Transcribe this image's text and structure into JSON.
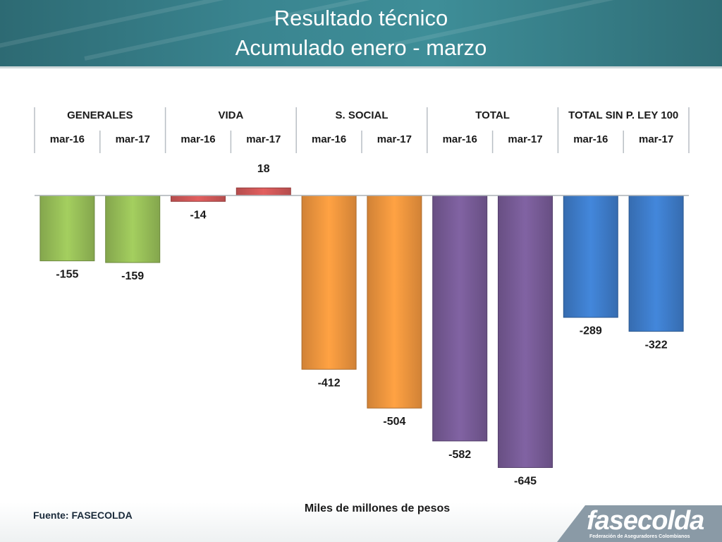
{
  "header": {
    "title_line1": "Resultado técnico",
    "title_line2": "Acumulado  enero - marzo"
  },
  "footer": {
    "source": "Fuente: FASECOLDA",
    "units": "Miles de millones de pesos"
  },
  "logo": {
    "word": "fasecolda",
    "subtitle": "Federación de Aseguradores Colombianos"
  },
  "colors": {
    "green": "#9bc35a",
    "red": "#d55a5a",
    "orange": "#f6993f",
    "purple": "#7a5d9a",
    "blue": "#3f7fcf",
    "header": "#3a8590"
  },
  "chart_data": {
    "type": "bar",
    "groups": [
      {
        "name": "GENERALES",
        "color": "#9bc35a",
        "categories": [
          "mar-16",
          "mar-17"
        ],
        "values": [
          -155,
          -159
        ]
      },
      {
        "name": "VIDA",
        "color": "#d55a5a",
        "categories": [
          "mar-16",
          "mar-17"
        ],
        "values": [
          -14,
          18
        ]
      },
      {
        "name": "S. SOCIAL",
        "color": "#f6993f",
        "categories": [
          "mar-16",
          "mar-17"
        ],
        "values": [
          -412,
          -504
        ]
      },
      {
        "name": "TOTAL",
        "color": "#7a5d9a",
        "categories": [
          "mar-16",
          "mar-17"
        ],
        "values": [
          -582,
          -645
        ]
      },
      {
        "name": "TOTAL SIN P. LEY 100",
        "color": "#3f7fcf",
        "categories": [
          "mar-16",
          "mar-17"
        ],
        "values": [
          -289,
          -322
        ]
      }
    ],
    "title": "",
    "xlabel": "",
    "ylabel": "Miles de millones de pesos",
    "ylim": [
      -700,
      30
    ],
    "grid": false,
    "legend": "none"
  }
}
